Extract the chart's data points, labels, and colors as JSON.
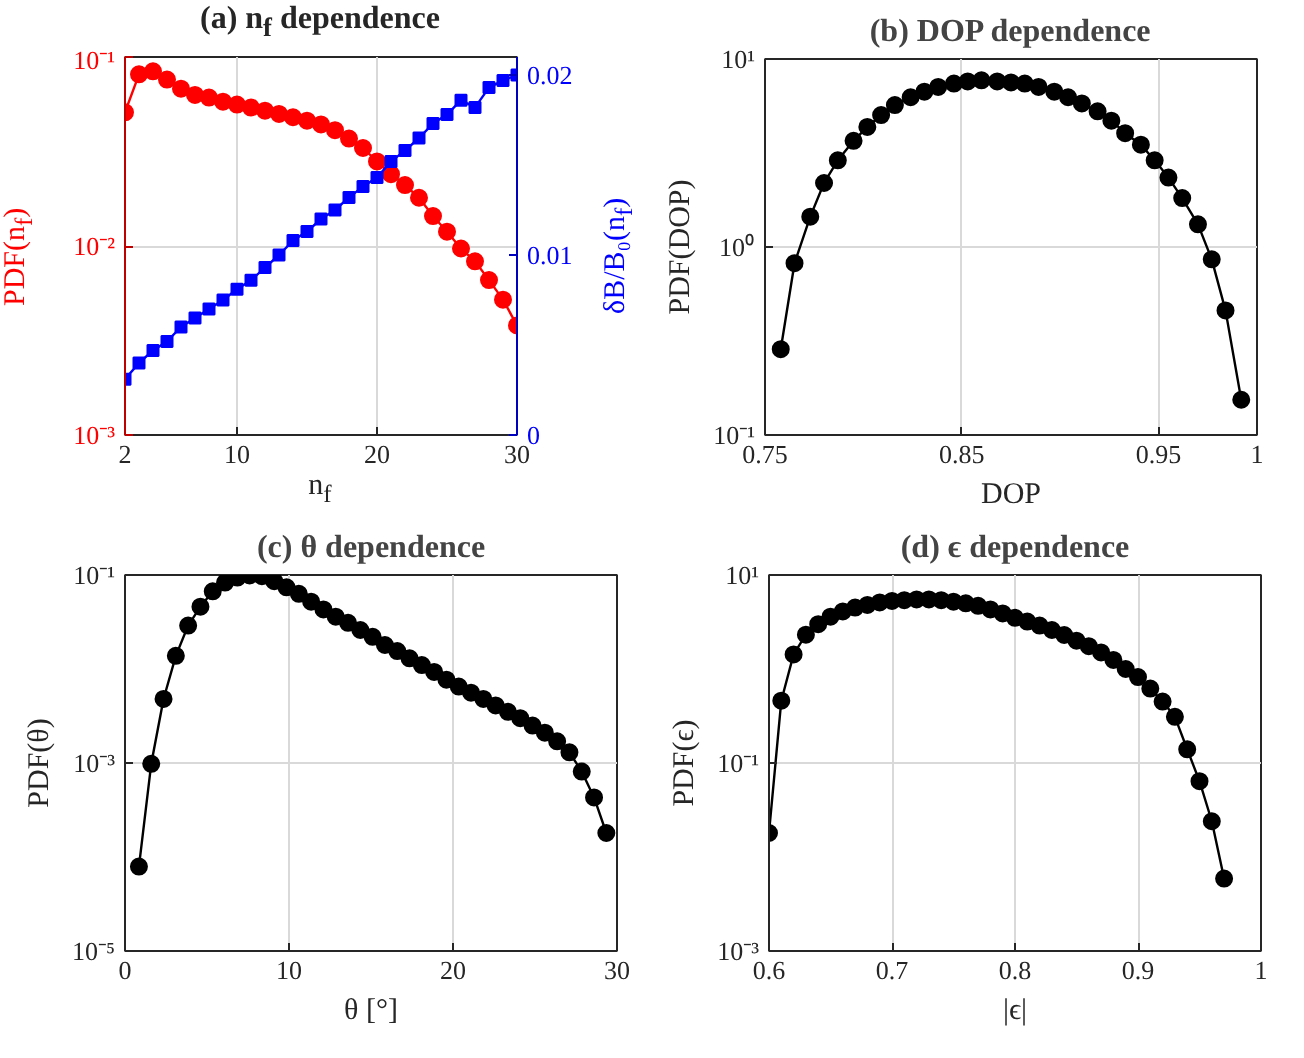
{
  "chart_data": [
    {
      "type": "line",
      "title": "(a) n$_{f}$ dependence",
      "xlabel": "n$_{f}$",
      "ylabel": "PDF(n$_{f}$)",
      "y2label": "δB/B₀(n$_{f}$)",
      "log": "y",
      "grid": true,
      "xlim": [
        2,
        30
      ],
      "xticks": [
        2,
        10,
        20,
        30
      ],
      "ylim": [
        0.001,
        0.1
      ],
      "yticks": [
        {
          "value": 0.001,
          "label": "10⁻³"
        },
        {
          "value": 0.01,
          "label": "10⁻²"
        },
        {
          "value": 0.1,
          "label": "10⁻¹"
        }
      ],
      "y2lim": [
        0,
        0.021
      ],
      "y2ticks": [
        0,
        0.01,
        0.02
      ],
      "x": [
        2,
        3,
        4,
        5,
        6,
        7,
        8,
        9,
        10,
        11,
        12,
        13,
        14,
        15,
        16,
        17,
        18,
        19,
        20,
        21,
        22,
        23,
        24,
        25,
        26,
        27,
        28,
        29,
        30
      ],
      "series": [
        {
          "color": "#ff0000",
          "marker": "circle",
          "values": [
            0.051,
            0.081,
            0.084,
            0.076,
            0.068,
            0.063,
            0.061,
            0.058,
            0.056,
            0.054,
            0.052,
            0.05,
            0.048,
            0.046,
            0.044,
            0.041,
            0.037,
            0.033,
            0.028,
            0.024,
            0.021,
            0.018,
            0.0144,
            0.0119,
            0.0097,
            0.0083,
            0.0066,
            0.0052,
            0.0038
          ]
        },
        {
          "color": "#0000ff",
          "marker": "square",
          "axis": "y2",
          "values": [
            0.0031,
            0.004,
            0.0047,
            0.0052,
            0.006,
            0.0065,
            0.007,
            0.0075,
            0.0081,
            0.0086,
            0.0093,
            0.01,
            0.0108,
            0.0113,
            0.012,
            0.0125,
            0.0132,
            0.0138,
            0.0143,
            0.0152,
            0.0158,
            0.0165,
            0.0173,
            0.0178,
            0.0186,
            0.0182,
            0.0193,
            0.0197,
            0.02
          ]
        }
      ]
    },
    {
      "type": "line",
      "title": "(b) DOP dependence",
      "xlabel": "DOP",
      "ylabel": "PDF(DOP)",
      "log": "y",
      "grid": true,
      "marker": "circle",
      "xlim": [
        0.75,
        1
      ],
      "xticks": [
        0.75,
        0.85,
        0.95,
        1
      ],
      "ylim": [
        0.1,
        10
      ],
      "yticks": [
        {
          "value": 0.1,
          "label": "10⁻¹"
        },
        {
          "value": 1,
          "label": "10⁰"
        },
        {
          "value": 10,
          "label": "10¹"
        }
      ],
      "x": [
        0.758,
        0.765,
        0.773,
        0.78,
        0.787,
        0.795,
        0.802,
        0.809,
        0.816,
        0.824,
        0.831,
        0.838,
        0.846,
        0.853,
        0.86,
        0.868,
        0.875,
        0.882,
        0.889,
        0.897,
        0.904,
        0.911,
        0.919,
        0.926,
        0.933,
        0.941,
        0.948,
        0.955,
        0.962,
        0.97,
        0.977,
        0.984,
        0.992
      ],
      "series": [
        {
          "color": "#000000",
          "values": [
            0.286,
            0.82,
            1.45,
            2.19,
            2.89,
            3.67,
            4.35,
            5.03,
            5.69,
            6.26,
            6.7,
            7.1,
            7.4,
            7.6,
            7.7,
            7.6,
            7.5,
            7.4,
            7.1,
            6.7,
            6.26,
            5.8,
            5.27,
            4.7,
            4.03,
            3.5,
            2.89,
            2.34,
            1.82,
            1.32,
            0.86,
            0.46,
            0.154
          ]
        }
      ]
    },
    {
      "type": "line",
      "title": "(c) θ dependence",
      "xlabel": "θ [°]",
      "ylabel": "PDF(θ)",
      "log": "y",
      "grid": true,
      "marker": "circle",
      "xlim": [
        0,
        30
      ],
      "xticks": [
        0,
        10,
        20,
        30
      ],
      "ylim": [
        1e-05,
        0.1
      ],
      "yticks": [
        {
          "value": 1e-05,
          "label": "10⁻⁵"
        },
        {
          "value": 0.001,
          "label": "10⁻³"
        },
        {
          "value": 0.1,
          "label": "10⁻¹"
        }
      ],
      "x": [
        0.85,
        1.6,
        2.35,
        3.1,
        3.85,
        4.6,
        5.35,
        6.1,
        6.85,
        7.6,
        8.35,
        9.1,
        9.85,
        10.6,
        11.35,
        12.1,
        12.85,
        13.6,
        14.35,
        15.1,
        15.85,
        16.6,
        17.35,
        18.1,
        18.85,
        19.6,
        20.35,
        21.1,
        21.85,
        22.6,
        23.35,
        24.1,
        24.85,
        25.6,
        26.35,
        27.1,
        27.85,
        28.6,
        29.35
      ],
      "series": [
        {
          "color": "#000000",
          "values": [
            7.9e-05,
            0.00098,
            0.0048,
            0.0138,
            0.029,
            0.046,
            0.067,
            0.083,
            0.094,
            0.099,
            0.097,
            0.086,
            0.074,
            0.063,
            0.052,
            0.043,
            0.036,
            0.031,
            0.026,
            0.022,
            0.018,
            0.0155,
            0.013,
            0.011,
            0.0093,
            0.0077,
            0.0065,
            0.0056,
            0.0048,
            0.0041,
            0.0035,
            0.003,
            0.0025,
            0.0021,
            0.0017,
            0.0013,
            0.00081,
            0.00043,
            0.00018
          ]
        }
      ]
    },
    {
      "type": "line",
      "title": "(d) ϵ dependence",
      "xlabel": "|ϵ|",
      "ylabel": "PDF(ϵ)",
      "log": "y",
      "grid": true,
      "marker": "circle",
      "xlim": [
        0.6,
        1
      ],
      "xticks": [
        0.6,
        0.7,
        0.8,
        0.9,
        1
      ],
      "ylim": [
        0.001,
        10
      ],
      "yticks": [
        {
          "value": 0.001,
          "label": "10⁻³"
        },
        {
          "value": 0.1,
          "label": "10⁻¹"
        },
        {
          "value": 10,
          "label": "10¹"
        }
      ],
      "x": [
        0.6,
        0.61,
        0.62,
        0.63,
        0.64,
        0.65,
        0.66,
        0.67,
        0.68,
        0.69,
        0.7,
        0.71,
        0.72,
        0.73,
        0.74,
        0.75,
        0.76,
        0.77,
        0.78,
        0.79,
        0.8,
        0.81,
        0.82,
        0.83,
        0.84,
        0.85,
        0.86,
        0.87,
        0.88,
        0.89,
        0.9,
        0.91,
        0.92,
        0.93,
        0.94,
        0.95,
        0.96,
        0.97
      ],
      "series": [
        {
          "color": "#000000",
          "values": [
            0.018,
            0.46,
            1.43,
            2.32,
            3.0,
            3.6,
            4.1,
            4.5,
            4.8,
            5.1,
            5.3,
            5.4,
            5.5,
            5.5,
            5.4,
            5.2,
            5.0,
            4.7,
            4.3,
            3.9,
            3.5,
            3.2,
            2.9,
            2.6,
            2.3,
            2.0,
            1.75,
            1.5,
            1.25,
            1.0,
            0.82,
            0.62,
            0.45,
            0.31,
            0.14,
            0.064,
            0.024,
            0.0059
          ]
        }
      ]
    }
  ]
}
